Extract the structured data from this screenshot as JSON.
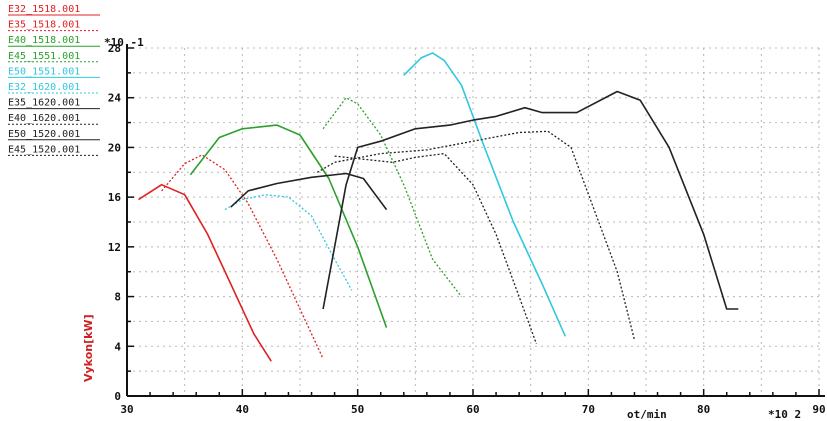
{
  "chart_data": {
    "type": "line",
    "title": "",
    "xlabel": "ot/min",
    "ylabel": "Vykon[kW]",
    "x_multiplier": "*10 2",
    "y_multiplier": "*10 -1",
    "xlim": [
      30,
      90
    ],
    "ylim": [
      0,
      28
    ],
    "x_ticks": [
      "30",
      "40",
      "50",
      "60",
      "70",
      "80",
      "90"
    ],
    "y_ticks": [
      "0",
      "4",
      "8",
      "12",
      "16",
      "20",
      "24",
      "28"
    ],
    "grid": true,
    "legend_position": "top-left",
    "series": [
      {
        "name": "E32_1518.001",
        "color": "#e02020",
        "dash": "solid",
        "x": [
          31,
          33,
          35,
          37,
          39,
          41,
          42.5
        ],
        "y": [
          15.8,
          17,
          16.2,
          13,
          9,
          5,
          2.8
        ]
      },
      {
        "name": "E35_1518.001",
        "color": "#e02020",
        "dash": "dotted",
        "x": [
          33,
          35,
          36.5,
          38.5,
          40.5,
          43,
          45,
          47
        ],
        "y": [
          16.5,
          18.7,
          19.4,
          18.2,
          15.5,
          11,
          7,
          3
        ]
      },
      {
        "name": "E40_1518.001",
        "color": "#2ca02c",
        "dash": "solid",
        "x": [
          35.5,
          38,
          40,
          43,
          45,
          47.5,
          50,
          52.5
        ],
        "y": [
          17.8,
          20.8,
          21.5,
          21.8,
          21,
          17.5,
          12,
          5.5
        ]
      },
      {
        "name": "E45_1551.001",
        "color": "#2ca02c",
        "dash": "dotted",
        "x": [
          47,
          49,
          50,
          52,
          54,
          56.5,
          59
        ],
        "y": [
          21.5,
          24,
          23.5,
          21,
          17,
          11,
          8
        ]
      },
      {
        "name": "E50_1551.001",
        "color": "#30c8e0",
        "dash": "solid",
        "x": [
          54,
          55.5,
          56.5,
          57.5,
          59,
          61,
          63.5,
          66,
          68
        ],
        "y": [
          25.8,
          27.2,
          27.6,
          27,
          25,
          20,
          14,
          9,
          4.8
        ]
      },
      {
        "name": "E32_1620.001",
        "color": "#30c8e0",
        "dash": "dotted",
        "x": [
          38.5,
          40,
          42,
          44,
          46,
          48,
          49.5
        ],
        "y": [
          15,
          15.8,
          16.2,
          16,
          14.5,
          11,
          8.5
        ]
      },
      {
        "name": "E35_1620.001",
        "color": "#222222",
        "dash": "solid",
        "x": [
          39,
          40.5,
          43,
          46,
          49,
          50.5,
          52.5
        ],
        "y": [
          15.2,
          16.5,
          17.1,
          17.6,
          17.9,
          17.5,
          15
        ]
      },
      {
        "name": "E40_1620.001",
        "color": "#222222",
        "dash": "dotted",
        "x": [
          48,
          50,
          53,
          55,
          57.5,
          60,
          62,
          64,
          65.5
        ],
        "y": [
          19.3,
          19.1,
          18.8,
          19.2,
          19.5,
          17,
          13,
          8,
          4.2
        ]
      },
      {
        "name": "E50_1520.001",
        "color": "#222222",
        "dash": "solid",
        "x": [
          47,
          48,
          49,
          50,
          52,
          55,
          58,
          60,
          62,
          64.5,
          66,
          69,
          72.5,
          74.5,
          77,
          80,
          82,
          83
        ],
        "y": [
          7,
          12,
          17,
          20,
          20.5,
          21.5,
          21.8,
          22.2,
          22.5,
          23.2,
          22.8,
          22.8,
          24.5,
          23.8,
          20,
          13,
          7,
          7
        ]
      },
      {
        "name": "E45_1520.001",
        "color": "#222222",
        "dash": "dotted",
        "x": [
          46.5,
          48,
          52,
          56,
          60,
          64,
          66.5,
          68.5,
          70.5,
          72.5,
          74
        ],
        "y": [
          18,
          18.8,
          19.5,
          19.8,
          20.5,
          21.2,
          21.3,
          20,
          15,
          10,
          4.5
        ]
      }
    ]
  }
}
